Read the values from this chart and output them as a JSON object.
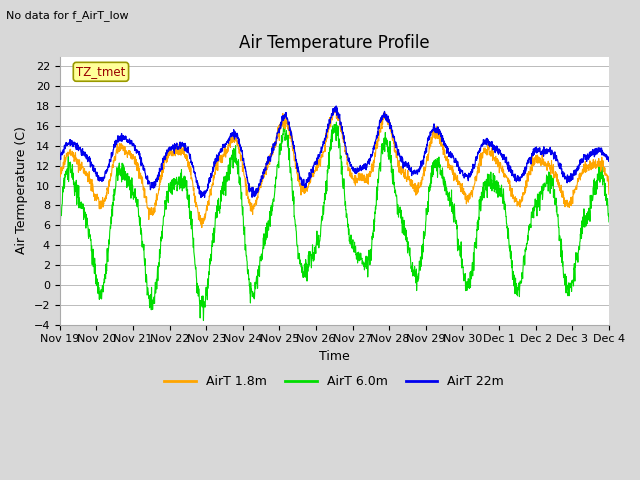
{
  "title": "Air Temperature Profile",
  "subtitle": "No data for f_AirT_low",
  "xlabel": "Time",
  "ylabel": "Air Termperature (C)",
  "ylim": [
    -4,
    23
  ],
  "yticks": [
    -4,
    -2,
    0,
    2,
    4,
    6,
    8,
    10,
    12,
    14,
    16,
    18,
    20,
    22
  ],
  "xtick_labels": [
    "Nov 19",
    "Nov 20",
    "Nov 21",
    "Nov 22",
    "Nov 23",
    "Nov 24",
    "Nov 25",
    "Nov 26",
    "Nov 27",
    "Nov 28",
    "Nov 29",
    "Nov 30",
    "Dec 1",
    "Dec 2",
    "Dec 3",
    "Dec 4"
  ],
  "legend_labels": [
    "AirT 1.8m",
    "AirT 6.0m",
    "AirT 22m"
  ],
  "line_colors": [
    "#FFA500",
    "#00DD00",
    "#0000EE"
  ],
  "annotation_text": "TZ_tmet",
  "annotation_color": "#990000",
  "annotation_bg": "#FFFF99",
  "annotation_edge": "#999900",
  "bg_color": "#D8D8D8",
  "plot_bg": "#FFFFFF",
  "grid_color": "#BBBBBB",
  "title_fontsize": 12,
  "label_fontsize": 9,
  "tick_fontsize": 8
}
